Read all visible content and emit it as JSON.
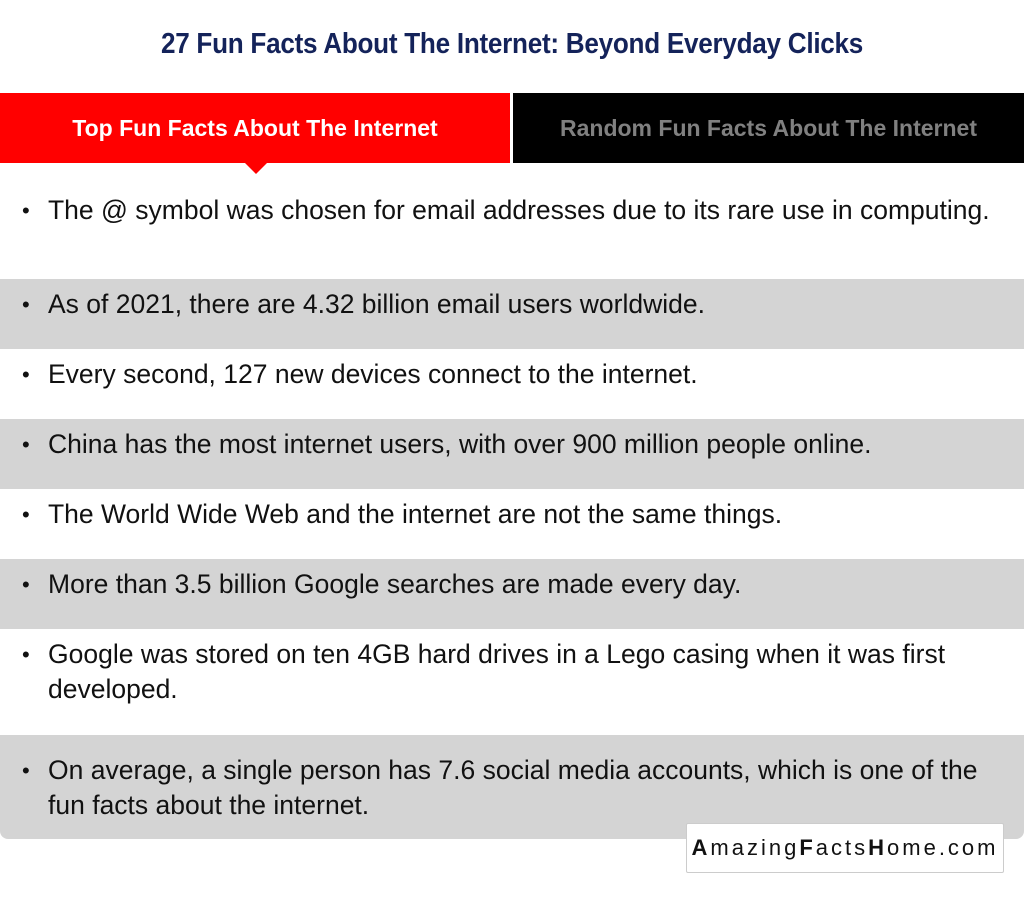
{
  "title": "27 Fun Facts About The Internet: Beyond Everyday Clicks",
  "tabs": [
    {
      "label": "Top Fun Facts About The Internet",
      "active": true,
      "color": "#ff0000"
    },
    {
      "label": "Random Fun Facts About The Internet",
      "active": false,
      "color": "#000000"
    }
  ],
  "facts": [
    "The @ symbol was chosen for email addresses due to its rare use in computing.",
    "As of 2021, there are 4.32 billion email users worldwide.",
    "Every second, 127 new devices connect to the internet.",
    "China has the most internet users, with over 900 million people online.",
    "The World Wide Web and the internet are not the same things.",
    "More than 3.5 billion Google searches are made every day.",
    "Google was stored on ten 4GB hard drives in a Lego casing when it was first developed.",
    "On average, a single person has 7.6 social media accounts, which is one of the fun facts about the internet."
  ],
  "watermark": "AmazingFactsHome.com"
}
